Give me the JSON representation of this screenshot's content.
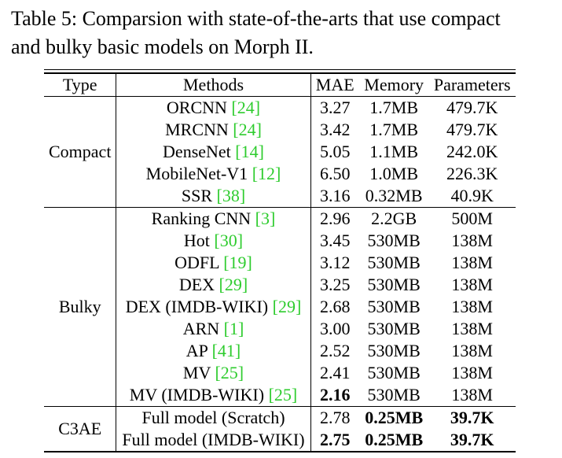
{
  "caption": {
    "line1": "Table 5: Comparsion with state-of-the-arts that use compact",
    "line2": "and bulky basic models on Morph II."
  },
  "table": {
    "headers": {
      "type": "Type",
      "methods": "Methods",
      "mae": "MAE",
      "memory": "Memory",
      "parameters": "Parameters"
    },
    "groups": [
      {
        "type": "Compact",
        "rows": [
          {
            "method": "ORCNN ",
            "ref": "[24]",
            "mae": "3.27",
            "memory": "1.7MB",
            "params": "479.7K"
          },
          {
            "method": "MRCNN ",
            "ref": "[24]",
            "mae": "3.42",
            "memory": "1.7MB",
            "params": "479.7K"
          },
          {
            "method": "DenseNet ",
            "ref": "[14]",
            "mae": "5.05",
            "memory": "1.1MB",
            "params": "242.0K"
          },
          {
            "method": "MobileNet-V1 ",
            "ref": "[12]",
            "mae": "6.50",
            "memory": "1.0MB",
            "params": "226.3K"
          },
          {
            "method": "SSR ",
            "ref": "[38]",
            "mae": "3.16",
            "memory": "0.32MB",
            "params": "40.9K"
          }
        ]
      },
      {
        "type": "Bulky",
        "rows": [
          {
            "method": "Ranking CNN ",
            "ref": "[3]",
            "mae": "2.96",
            "memory": "2.2GB",
            "params": "500M"
          },
          {
            "method": "Hot ",
            "ref": "[30]",
            "mae": "3.45",
            "memory": "530MB",
            "params": "138M"
          },
          {
            "method": "ODFL ",
            "ref": "[19]",
            "mae": "3.12",
            "memory": "530MB",
            "params": "138M"
          },
          {
            "method": "DEX ",
            "ref": "[29]",
            "mae": "3.25",
            "memory": "530MB",
            "params": "138M"
          },
          {
            "method": "DEX (IMDB-WIKI) ",
            "ref": "[29]",
            "mae": "2.68",
            "memory": "530MB",
            "params": "138M"
          },
          {
            "method": "ARN ",
            "ref": "[1]",
            "mae": "3.00",
            "memory": "530MB",
            "params": "138M"
          },
          {
            "method": "AP ",
            "ref": "[41]",
            "mae": "2.52",
            "memory": "530MB",
            "params": "138M"
          },
          {
            "method": "MV ",
            "ref": "[25]",
            "mae": "2.41",
            "memory": "530MB",
            "params": "138M"
          },
          {
            "method": "MV (IMDB-WIKI) ",
            "ref": "[25]",
            "mae": "2.16",
            "memory": "530MB",
            "params": "138M"
          }
        ]
      },
      {
        "type": "C3AE",
        "rows": [
          {
            "method": "Full model (Scratch)",
            "ref": "",
            "mae": "2.78",
            "memory": "0.25MB",
            "params": "39.7K"
          },
          {
            "method": "Full model (IMDB-WIKI)",
            "ref": "",
            "mae": "2.75",
            "memory": "0.25MB",
            "params": "39.7K"
          }
        ]
      }
    ]
  },
  "colors": {
    "citation": "#2ecc2e",
    "text": "#000000"
  }
}
